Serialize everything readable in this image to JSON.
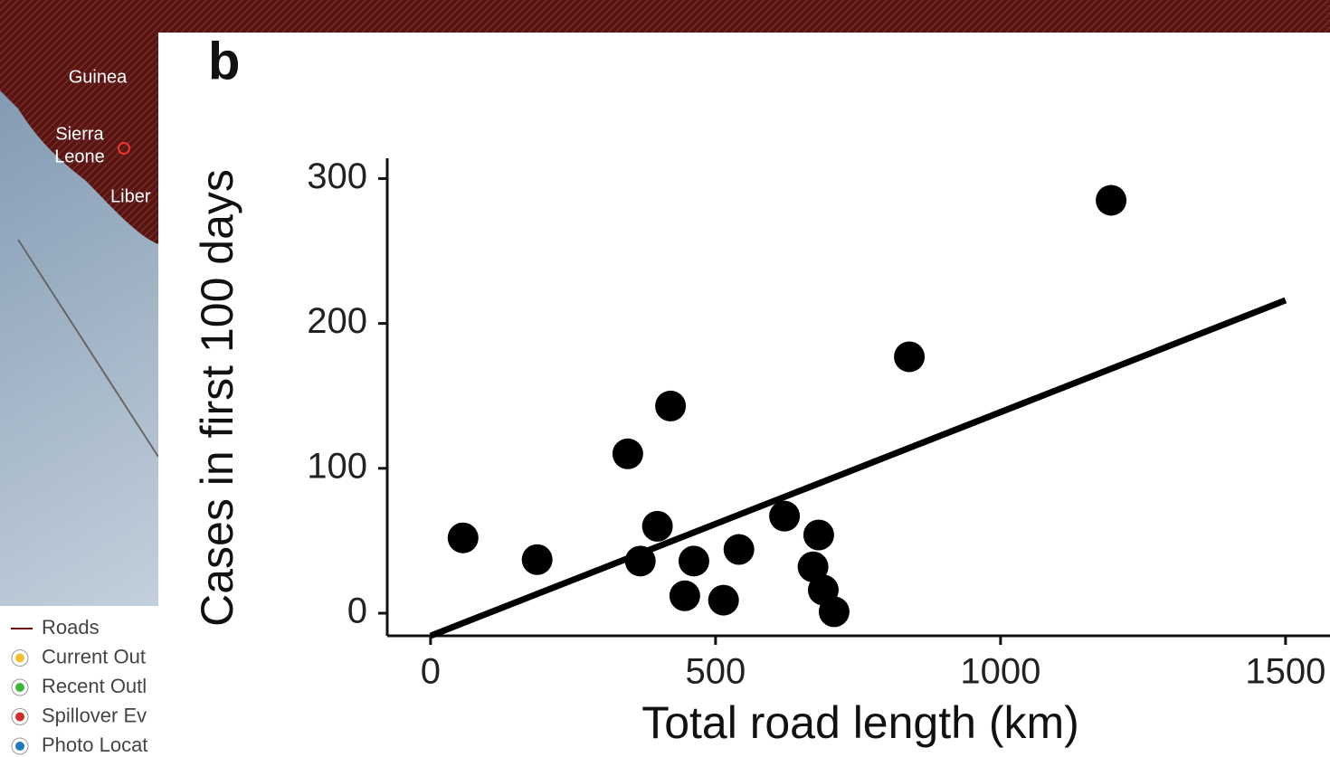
{
  "chart_data": {
    "type": "scatter",
    "panel_label": "b",
    "x_label": "Total road length (km)",
    "y_label": "Cases in first 100 days",
    "x": [
      57,
      187,
      346,
      421,
      398,
      368,
      462,
      446,
      514,
      541,
      621,
      681,
      671,
      689,
      708,
      840,
      1194
    ],
    "values": [
      52,
      37,
      110,
      143,
      60,
      36,
      36,
      12,
      9,
      44,
      67,
      54,
      32,
      16,
      1,
      177,
      285
    ],
    "color": "#000000",
    "trend_line": {
      "x": [
        0,
        1500
      ],
      "y": [
        -15.6,
        216
      ]
    },
    "xlim": [
      -76,
      1578
    ],
    "ylim": [
      -15.6,
      314
    ],
    "xticks": [
      0,
      500,
      1000,
      1500
    ],
    "yticks": [
      0,
      100,
      200,
      300
    ]
  },
  "map": {
    "labels": [
      "Guinea",
      "Sierra",
      "Leone",
      "Liber"
    ],
    "legend": [
      {
        "name": "Roads",
        "color": "#6b0f0f"
      },
      {
        "name": "Current Out",
        "color": "#f2c12e"
      },
      {
        "name": "Recent Outl",
        "color": "#3cb83c"
      },
      {
        "name": "Spillover Ev",
        "color": "#d62b2b"
      },
      {
        "name": "Photo Locat",
        "color": "#1f7bbf"
      }
    ]
  }
}
